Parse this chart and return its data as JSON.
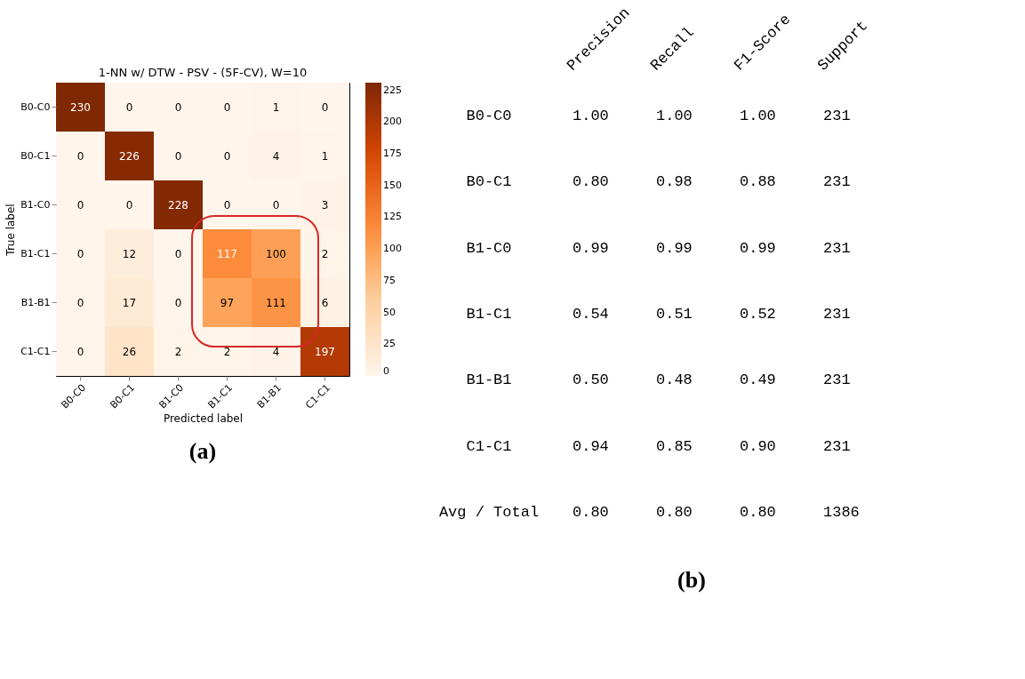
{
  "chart_data": [
    {
      "type": "heatmap",
      "title": "1-NN w/ DTW - PSV - (5F-CV), W=10",
      "xlabel": "Predicted label",
      "ylabel": "True label",
      "categories": [
        "B0-C0",
        "B0-C1",
        "B1-C0",
        "B1-C1",
        "B1-B1",
        "C1-C1"
      ],
      "y_categories": [
        "B0-C0",
        "B0-C1",
        "B1-C0",
        "B1-C1",
        "B1-B1",
        "C1-C1"
      ],
      "cells": [
        [
          230,
          0,
          0,
          0,
          1,
          0
        ],
        [
          0,
          226,
          0,
          0,
          4,
          1
        ],
        [
          0,
          0,
          228,
          0,
          0,
          3
        ],
        [
          0,
          12,
          0,
          117,
          100,
          2
        ],
        [
          0,
          17,
          0,
          97,
          111,
          6
        ],
        [
          0,
          26,
          2,
          2,
          4,
          197
        ]
      ],
      "data_labels": true,
      "clim": [
        0,
        231
      ],
      "cticks": [
        0,
        25,
        50,
        75,
        100,
        125,
        150,
        175,
        200,
        225
      ],
      "annotations": [
        "(a)"
      ]
    },
    {
      "type": "other",
      "categories": [
        "Precision",
        "Recall",
        "F1-Score",
        "Support"
      ],
      "y_categories": [
        "B0-C0",
        "B0-C1",
        "B1-C0",
        "B1-C1",
        "B1-B1",
        "C1-C1",
        "Avg / Total"
      ],
      "cell_labels": [
        [
          "1.00",
          "1.00",
          "1.00",
          "231"
        ],
        [
          "0.80",
          "0.98",
          "0.88",
          "231"
        ],
        [
          "0.99",
          "0.99",
          "0.99",
          "231"
        ],
        [
          "0.54",
          "0.51",
          "0.52",
          "231"
        ],
        [
          "0.50",
          "0.48",
          "0.49",
          "231"
        ],
        [
          "0.94",
          "0.85",
          "0.90",
          "231"
        ],
        [
          "0.80",
          "0.80",
          "0.80",
          "1386"
        ]
      ],
      "annotations": [
        "(b)"
      ]
    }
  ]
}
